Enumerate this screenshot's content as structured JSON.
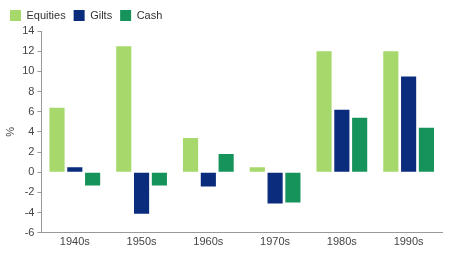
{
  "chart_data": {
    "type": "bar",
    "ylabel": "%",
    "categories": [
      "1940s",
      "1950s",
      "1960s",
      "1970s",
      "1980s",
      "1990s"
    ],
    "series": [
      {
        "name": "Equities",
        "color": "#a6d86b",
        "values": [
          6.4,
          12.5,
          3.4,
          0.5,
          12.0,
          12.0
        ]
      },
      {
        "name": "Gilts",
        "color": "#0b2b7c",
        "values": [
          0.5,
          -4.1,
          -1.4,
          -3.1,
          6.2,
          9.5
        ]
      },
      {
        "name": "Cash",
        "color": "#16935a",
        "values": [
          -1.3,
          -1.3,
          1.8,
          -3.0,
          5.4,
          4.4
        ]
      }
    ],
    "ylim": [
      -6,
      14
    ],
    "yticks": [
      -6,
      -4,
      -2,
      0,
      2,
      4,
      6,
      8,
      10,
      12,
      14
    ],
    "grid": false,
    "legend": "top-left"
  }
}
